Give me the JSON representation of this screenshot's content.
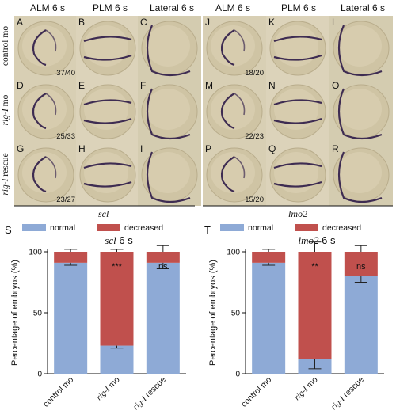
{
  "columns_left": [
    "ALM 6 s",
    "PLM 6 s",
    "Lateral 6 s"
  ],
  "columns_right": [
    "ALM 6 s",
    "PLM 6 s",
    "Lateral 6 s"
  ],
  "rows": [
    {
      "italic": "",
      "normal": "control mo"
    },
    {
      "italic": "rig-I",
      "normal": " mo"
    },
    {
      "italic": "rig-I",
      "normal": " rescue"
    }
  ],
  "panels_left": [
    {
      "letter": "A",
      "count": "37/40"
    },
    {
      "letter": "B",
      "count": ""
    },
    {
      "letter": "C",
      "count": ""
    },
    {
      "letter": "D",
      "count": "25/33"
    },
    {
      "letter": "E",
      "count": ""
    },
    {
      "letter": "F",
      "count": ""
    },
    {
      "letter": "G",
      "count": "23/27"
    },
    {
      "letter": "H",
      "count": ""
    },
    {
      "letter": "I",
      "count": ""
    }
  ],
  "panels_right": [
    {
      "letter": "J",
      "count": "18/20"
    },
    {
      "letter": "K",
      "count": ""
    },
    {
      "letter": "L",
      "count": ""
    },
    {
      "letter": "M",
      "count": "22/23"
    },
    {
      "letter": "N",
      "count": ""
    },
    {
      "letter": "O",
      "count": ""
    },
    {
      "letter": "P",
      "count": "15/20"
    },
    {
      "letter": "Q",
      "count": ""
    },
    {
      "letter": "R",
      "count": ""
    }
  ],
  "gene_labels": [
    "scl",
    "lmo2"
  ],
  "panel_S": "S",
  "panel_T": "T",
  "colors": {
    "normal": "#8eaad6",
    "decreased": "#c0504d"
  },
  "chart_data": [
    {
      "type": "bar",
      "stacked": true,
      "title_gene": "scl",
      "title_suffix": " 6 s",
      "categories": [
        {
          "italic": "",
          "normal": "control mo"
        },
        {
          "italic": "rig-I",
          "normal": " mo"
        },
        {
          "italic": "rig-I",
          "normal": " rescue"
        }
      ],
      "series": [
        {
          "name": "normal",
          "values": [
            91,
            23,
            91
          ],
          "err": [
            2,
            2,
            5
          ]
        },
        {
          "name": "decreased",
          "values": [
            9,
            77,
            9
          ],
          "err": [
            2,
            2,
            5
          ]
        }
      ],
      "significance": [
        "",
        "***",
        "ns"
      ],
      "ylabel": "Percentage of embryos (%)",
      "ylim": [
        0,
        100
      ],
      "yticks": [
        "0",
        "50",
        "100"
      ]
    },
    {
      "type": "bar",
      "stacked": true,
      "title_gene": "lmo2",
      "title_suffix": " 6 s",
      "categories": [
        {
          "italic": "",
          "normal": "control mo"
        },
        {
          "italic": "rig-I",
          "normal": " mo"
        },
        {
          "italic": "rig-I",
          "normal": " rescue"
        }
      ],
      "series": [
        {
          "name": "normal",
          "values": [
            91,
            12,
            80
          ],
          "err": [
            2,
            8,
            5
          ]
        },
        {
          "name": "decreased",
          "values": [
            9,
            88,
            20
          ],
          "err": [
            2,
            8,
            5
          ]
        }
      ],
      "significance": [
        "",
        "**",
        "ns"
      ],
      "ylabel": "Percentage of embryos (%)",
      "ylim": [
        0,
        100
      ],
      "yticks": [
        "0",
        "50",
        "100"
      ]
    }
  ]
}
